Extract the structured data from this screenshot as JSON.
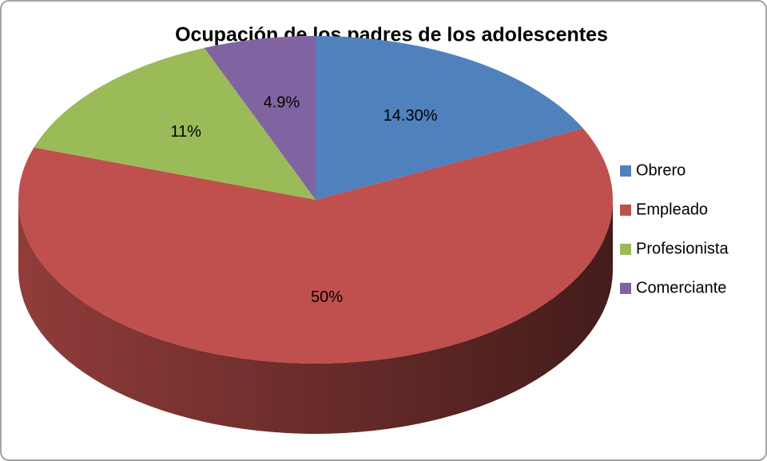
{
  "chart_data": {
    "type": "pie",
    "title": "Ocupación de los padres de los adolescentes",
    "categories": [
      "Obrero",
      "Empleado",
      "Profesionista",
      "Comerciante"
    ],
    "values": [
      14.3,
      50,
      11,
      4.9
    ],
    "value_labels": [
      "14.30%",
      "50%",
      "11%",
      "4.9%"
    ],
    "colors": [
      "#4f81bd",
      "#c0504d",
      "#9bbb59",
      "#8064a2"
    ],
    "legend": "right"
  }
}
